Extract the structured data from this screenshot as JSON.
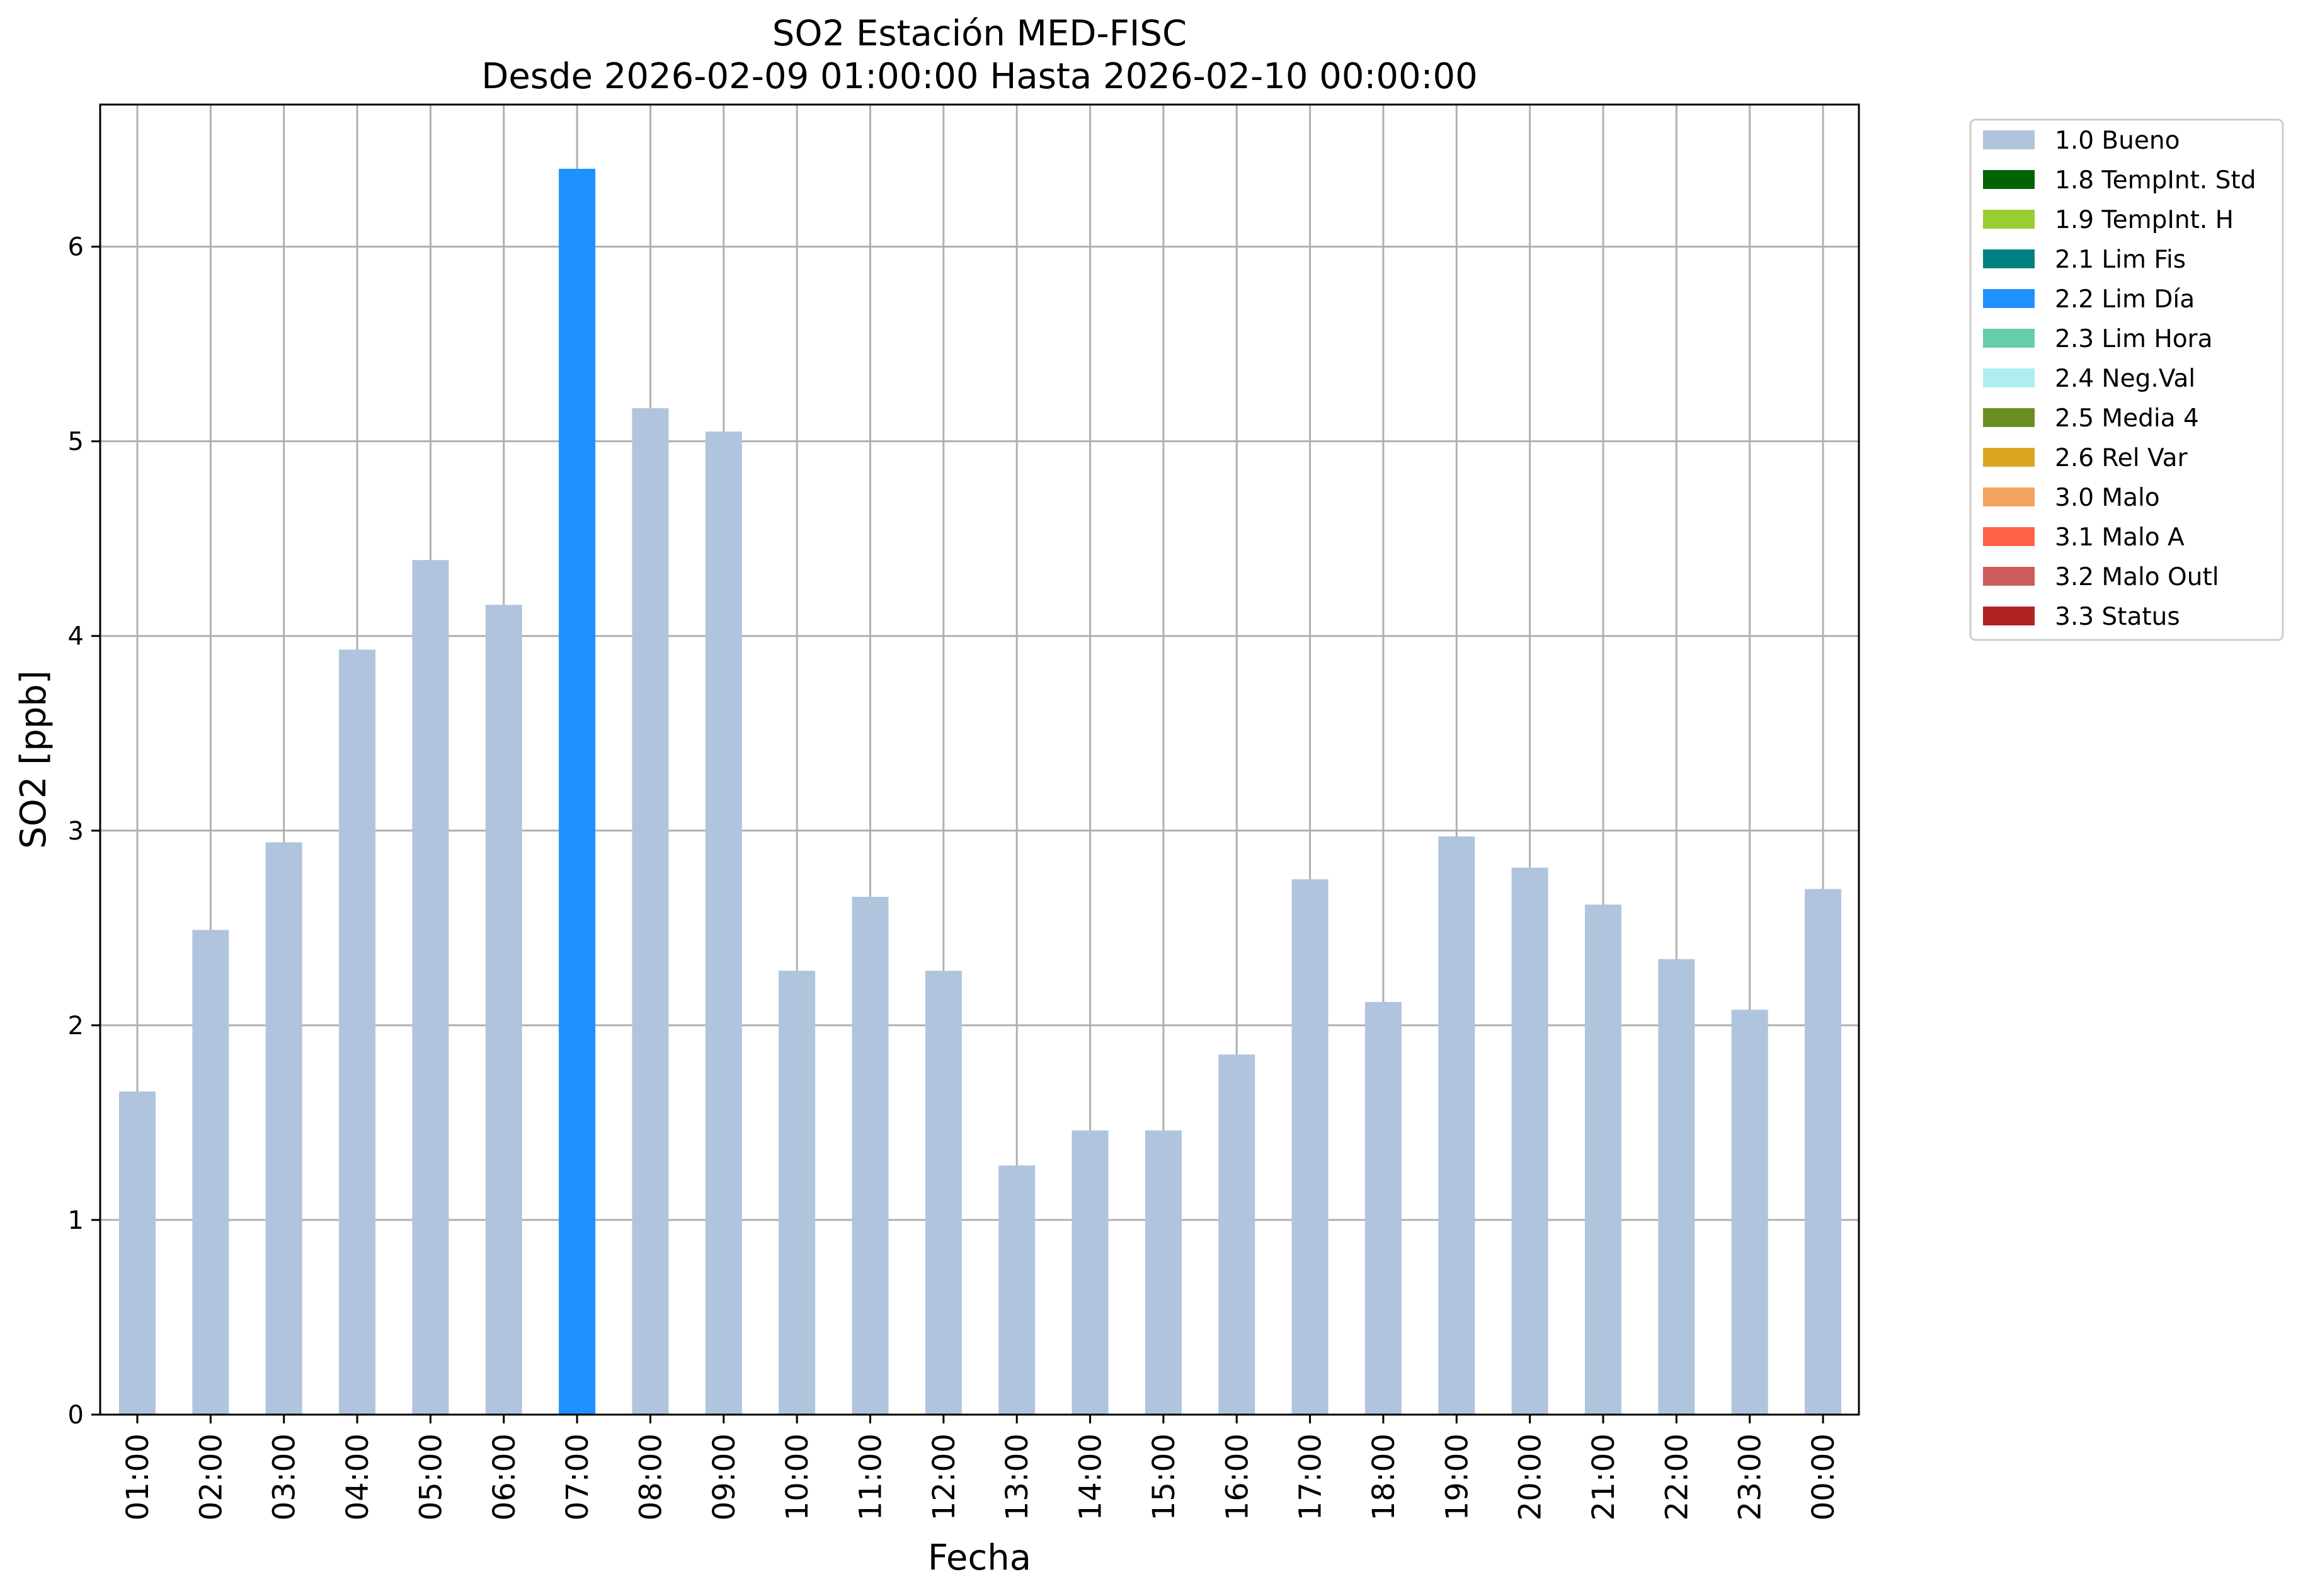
{
  "chart_data": {
    "type": "bar",
    "title": "SO2 Estación MED-FISC",
    "subtitle": "Desde 2026-02-09 01:00:00 Hasta 2026-02-10 00:00:00",
    "xlabel": "Fecha",
    "ylabel": "SO2 [ppb]",
    "ylim": [
      0,
      6.73
    ],
    "yticks": [
      "0",
      "1",
      "2",
      "3",
      "4",
      "5",
      "6"
    ],
    "grid": true,
    "legend_position": "outside-top-right",
    "categories": [
      "01:00",
      "02:00",
      "03:00",
      "04:00",
      "05:00",
      "06:00",
      "07:00",
      "08:00",
      "09:00",
      "10:00",
      "11:00",
      "12:00",
      "13:00",
      "14:00",
      "15:00",
      "16:00",
      "17:00",
      "18:00",
      "19:00",
      "20:00",
      "21:00",
      "22:00",
      "23:00",
      "00:00"
    ],
    "values": [
      1.66,
      2.49,
      2.94,
      3.93,
      4.39,
      4.16,
      6.4,
      5.17,
      5.05,
      2.28,
      2.66,
      2.28,
      1.28,
      1.46,
      1.46,
      1.85,
      2.75,
      2.12,
      2.97,
      2.81,
      2.62,
      2.34,
      2.08,
      2.7
    ],
    "flags": [
      "1.0 Bueno",
      "1.0 Bueno",
      "1.0 Bueno",
      "1.0 Bueno",
      "1.0 Bueno",
      "1.0 Bueno",
      "2.2 Lim Día",
      "1.0 Bueno",
      "1.0 Bueno",
      "1.0 Bueno",
      "1.0 Bueno",
      "1.0 Bueno",
      "1.0 Bueno",
      "1.0 Bueno",
      "1.0 Bueno",
      "1.0 Bueno",
      "1.0 Bueno",
      "1.0 Bueno",
      "1.0 Bueno",
      "1.0 Bueno",
      "1.0 Bueno",
      "1.0 Bueno",
      "1.0 Bueno",
      "1.0 Bueno"
    ],
    "legend": [
      {
        "label": "1.0 Bueno",
        "color": "#b0c4de"
      },
      {
        "label": "1.8 TempInt. Std",
        "color": "#006400"
      },
      {
        "label": "1.9 TempInt. H",
        "color": "#9acd32"
      },
      {
        "label": "2.1 Lim Fis",
        "color": "#008080"
      },
      {
        "label": "2.2 Lim Día",
        "color": "#1e90ff"
      },
      {
        "label": "2.3 Lim Hora",
        "color": "#66cdaa"
      },
      {
        "label": "2.4 Neg.Val",
        "color": "#afeeee"
      },
      {
        "label": "2.5 Media 4",
        "color": "#6b8e23"
      },
      {
        "label": "2.6 Rel Var",
        "color": "#daa520"
      },
      {
        "label": "3.0 Malo",
        "color": "#f4a460"
      },
      {
        "label": "3.1 Malo A",
        "color": "#ff6347"
      },
      {
        "label": "3.2 Malo Outl",
        "color": "#cd5c5c"
      },
      {
        "label": "3.3 Status",
        "color": "#b22222"
      }
    ]
  }
}
